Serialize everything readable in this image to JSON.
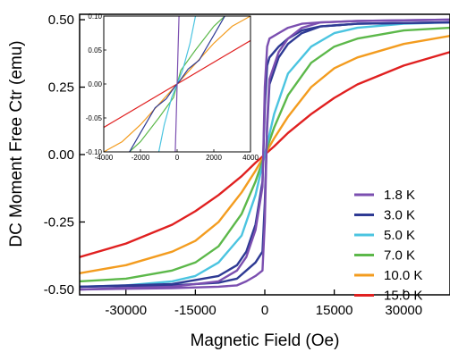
{
  "chart_data": [
    {
      "type": "line",
      "title": "",
      "xlabel": "Magnetic Field (Oe)",
      "ylabel": "DC Moment Free Ctr (emu)",
      "xlim": [
        -40000,
        40000
      ],
      "ylim": [
        -0.52,
        0.52
      ],
      "xticks": [
        -30000,
        -15000,
        0,
        15000,
        30000
      ],
      "xtick_labels": [
        "-30000",
        "-15000",
        "0",
        "15000",
        "30000"
      ],
      "yticks": [
        -0.5,
        -0.25,
        0.0,
        0.25,
        0.5
      ],
      "ytick_labels": [
        "-0.50",
        "-0.25",
        "0.00",
        "0.25",
        "0.50"
      ],
      "grid": false,
      "legend_position": "bottom-right",
      "series": [
        {
          "name": "1.8 K",
          "color": "#7b4fb0",
          "x": [
            -40000,
            -20000,
            -10000,
            -6000,
            -4000,
            -2000,
            -500,
            0,
            500,
            1000,
            3000,
            5000,
            8000,
            12000,
            20000,
            40000
          ],
          "upper": [
            -0.5,
            -0.49,
            -0.47,
            -0.43,
            -0.38,
            -0.28,
            -0.12,
            0.25,
            0.4,
            0.43,
            0.45,
            0.47,
            0.485,
            0.49,
            0.495,
            0.5
          ],
          "lower": [
            -0.5,
            -0.495,
            -0.49,
            -0.485,
            -0.47,
            -0.45,
            -0.43,
            -0.25,
            0.12,
            0.28,
            0.38,
            0.43,
            0.47,
            0.49,
            0.495,
            0.5
          ]
        },
        {
          "name": "3.0 K",
          "color": "#2e3a94",
          "x": [
            -40000,
            -20000,
            -10000,
            -6000,
            -4000,
            -2000,
            -500,
            0,
            500,
            1000,
            3000,
            5000,
            8000,
            12000,
            20000,
            40000
          ],
          "upper": [
            -0.49,
            -0.48,
            -0.45,
            -0.41,
            -0.36,
            -0.26,
            -0.1,
            0.18,
            0.33,
            0.36,
            0.4,
            0.43,
            0.46,
            0.475,
            0.485,
            0.49
          ],
          "lower": [
            -0.49,
            -0.485,
            -0.475,
            -0.46,
            -0.43,
            -0.4,
            -0.36,
            -0.18,
            0.1,
            0.26,
            0.36,
            0.41,
            0.45,
            0.475,
            0.485,
            0.49
          ]
        },
        {
          "name": "5.0 K",
          "color": "#4bc4e0",
          "x": [
            -40000,
            -30000,
            -20000,
            -15000,
            -10000,
            -5000,
            -2000,
            0,
            2000,
            5000,
            10000,
            15000,
            20000,
            30000,
            40000
          ],
          "values": [
            -0.49,
            -0.485,
            -0.47,
            -0.45,
            -0.4,
            -0.3,
            -0.15,
            0.0,
            0.15,
            0.3,
            0.4,
            0.45,
            0.47,
            0.485,
            0.49
          ]
        },
        {
          "name": "7.0 K",
          "color": "#5cb84a",
          "x": [
            -40000,
            -30000,
            -20000,
            -15000,
            -10000,
            -5000,
            -2000,
            0,
            2000,
            5000,
            10000,
            15000,
            20000,
            30000,
            40000
          ],
          "values": [
            -0.47,
            -0.46,
            -0.43,
            -0.4,
            -0.34,
            -0.22,
            -0.1,
            0.0,
            0.1,
            0.22,
            0.34,
            0.4,
            0.43,
            0.46,
            0.47
          ]
        },
        {
          "name": "10.0 K",
          "color": "#f39c1f",
          "x": [
            -40000,
            -30000,
            -20000,
            -15000,
            -10000,
            -5000,
            -2000,
            0,
            2000,
            5000,
            10000,
            15000,
            20000,
            30000,
            40000
          ],
          "values": [
            -0.44,
            -0.41,
            -0.36,
            -0.32,
            -0.25,
            -0.14,
            -0.06,
            0.0,
            0.06,
            0.14,
            0.25,
            0.32,
            0.36,
            0.41,
            0.44
          ]
        },
        {
          "name": "15.0 K",
          "color": "#e02020",
          "x": [
            -40000,
            -30000,
            -20000,
            -15000,
            -10000,
            -5000,
            -2000,
            0,
            2000,
            5000,
            10000,
            15000,
            20000,
            30000,
            40000
          ],
          "values": [
            -0.38,
            -0.33,
            -0.26,
            -0.21,
            -0.15,
            -0.08,
            -0.03,
            0.0,
            0.03,
            0.08,
            0.15,
            0.21,
            0.26,
            0.33,
            0.38
          ]
        }
      ]
    },
    {
      "type": "line",
      "title": "",
      "xlabel": "",
      "ylabel": "",
      "xlim": [
        -4000,
        4000
      ],
      "ylim": [
        -0.1,
        0.1
      ],
      "xticks": [
        -4000,
        -2000,
        0,
        2000,
        4000
      ],
      "xtick_labels": [
        "-4000",
        "-2000",
        "0",
        "2000",
        "4000"
      ],
      "yticks": [
        -0.1,
        -0.05,
        0.0,
        0.05,
        0.1
      ],
      "ytick_labels": [
        "-0.10",
        "-0.05",
        "0.00",
        "0.05",
        "0.10"
      ],
      "grid": false,
      "series": [
        {
          "name": "15.0 K",
          "color": "#e02020",
          "x": [
            -4000,
            4000
          ],
          "values": [
            -0.064,
            0.064
          ]
        },
        {
          "name": "10.0 K",
          "color": "#f39c1f",
          "x": [
            -4000,
            -3000,
            -2000,
            -1000,
            0,
            1000,
            2000,
            3000,
            4000
          ],
          "values": [
            -0.1,
            -0.085,
            -0.06,
            -0.03,
            0.0,
            0.03,
            0.06,
            0.085,
            0.1
          ]
        },
        {
          "name": "7.0 K",
          "color": "#5cb84a",
          "x": [
            -2600,
            -2000,
            -1000,
            -200,
            0,
            200,
            1000,
            2000,
            2600
          ],
          "values": [
            -0.1,
            -0.085,
            -0.05,
            -0.02,
            0.0,
            0.02,
            0.05,
            0.085,
            0.1
          ]
        },
        {
          "name": "5.0 K",
          "color": "#4bc4e0",
          "x": [
            -1000,
            -700,
            -300,
            0,
            300,
            700,
            1000
          ],
          "values": [
            -0.1,
            -0.06,
            -0.02,
            0.0,
            0.02,
            0.06,
            0.1
          ]
        },
        {
          "name": "3.0 K",
          "color": "#2e3a94",
          "x": [
            -2600,
            -2000,
            -1200,
            -600,
            -150,
            150,
            600,
            1200,
            2000,
            2600
          ],
          "values": [
            -0.1,
            -0.072,
            -0.035,
            -0.022,
            -0.005,
            0.005,
            0.022,
            0.035,
            0.072,
            0.1
          ]
        },
        {
          "name": "1.8 K",
          "color": "#7b4fb0",
          "x": [
            -100,
            -40,
            0,
            40,
            100
          ],
          "values": [
            -0.1,
            -0.04,
            0.0,
            0.04,
            0.1
          ]
        }
      ]
    }
  ]
}
